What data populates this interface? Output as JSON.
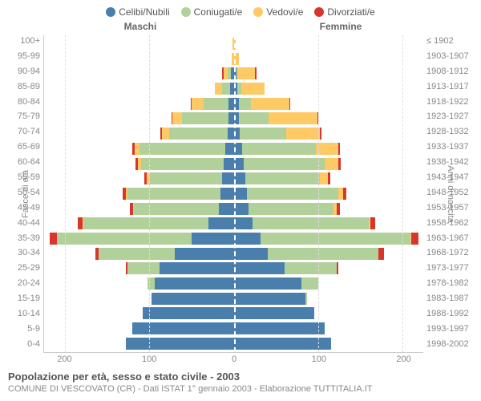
{
  "type": "population-pyramid",
  "legend": [
    {
      "label": "Celibi/Nubili",
      "color": "#4a7ead"
    },
    {
      "label": "Coniugati/e",
      "color": "#b1d09a"
    },
    {
      "label": "Vedovi/e",
      "color": "#ffc965"
    },
    {
      "label": "Divorziati/e",
      "color": "#d7362e"
    }
  ],
  "gender_left": "Maschi",
  "gender_right": "Femmine",
  "ylabel_left": "Fasce di età",
  "ylabel_right": "Anni di nascita",
  "xticks": [
    200,
    100,
    0,
    100,
    200
  ],
  "xmax": 225,
  "bar_gap_pct": 8,
  "colors": {
    "celibi": "#4a7ead",
    "coniugati": "#b1d09a",
    "vedovi": "#ffc965",
    "divorziati": "#d7362e",
    "grid": "#dddddd",
    "axis": "#cccccc",
    "text": "#888888",
    "background": "#ffffff"
  },
  "fonts": {
    "base": 11,
    "legend": 12,
    "title": 13
  },
  "rows": [
    {
      "age": "100+",
      "birth": "≤ 1902",
      "m": {
        "c": 0,
        "co": 0,
        "v": 1,
        "d": 0
      },
      "f": {
        "c": 0,
        "co": 0,
        "v": 2,
        "d": 0
      }
    },
    {
      "age": "95-99",
      "birth": "1903-1907",
      "m": {
        "c": 0,
        "co": 0,
        "v": 2,
        "d": 0
      },
      "f": {
        "c": 0,
        "co": 0,
        "v": 6,
        "d": 0
      }
    },
    {
      "age": "90-94",
      "birth": "1908-1912",
      "m": {
        "c": 3,
        "co": 4,
        "v": 5,
        "d": 2
      },
      "f": {
        "c": 3,
        "co": 2,
        "v": 20,
        "d": 2
      }
    },
    {
      "age": "85-89",
      "birth": "1913-1917",
      "m": {
        "c": 4,
        "co": 10,
        "v": 8,
        "d": 0
      },
      "f": {
        "c": 4,
        "co": 5,
        "v": 28,
        "d": 0
      }
    },
    {
      "age": "80-84",
      "birth": "1918-1922",
      "m": {
        "c": 6,
        "co": 30,
        "v": 14,
        "d": 1
      },
      "f": {
        "c": 6,
        "co": 14,
        "v": 46,
        "d": 1
      }
    },
    {
      "age": "75-79",
      "birth": "1923-1927",
      "m": {
        "c": 6,
        "co": 55,
        "v": 12,
        "d": 1
      },
      "f": {
        "c": 6,
        "co": 35,
        "v": 58,
        "d": 1
      }
    },
    {
      "age": "70-74",
      "birth": "1928-1932",
      "m": {
        "c": 7,
        "co": 70,
        "v": 8,
        "d": 2
      },
      "f": {
        "c": 7,
        "co": 55,
        "v": 40,
        "d": 2
      }
    },
    {
      "age": "65-69",
      "birth": "1933-1937",
      "m": {
        "c": 10,
        "co": 102,
        "v": 6,
        "d": 2
      },
      "f": {
        "c": 10,
        "co": 88,
        "v": 26,
        "d": 2
      }
    },
    {
      "age": "60-64",
      "birth": "1938-1942",
      "m": {
        "c": 12,
        "co": 98,
        "v": 4,
        "d": 3
      },
      "f": {
        "c": 12,
        "co": 96,
        "v": 16,
        "d": 3
      }
    },
    {
      "age": "55-59",
      "birth": "1943-1947",
      "m": {
        "c": 14,
        "co": 86,
        "v": 3,
        "d": 3
      },
      "f": {
        "c": 14,
        "co": 88,
        "v": 10,
        "d": 3
      }
    },
    {
      "age": "50-54",
      "birth": "1948-1952",
      "m": {
        "c": 16,
        "co": 110,
        "v": 2,
        "d": 4
      },
      "f": {
        "c": 16,
        "co": 108,
        "v": 6,
        "d": 4
      }
    },
    {
      "age": "45-49",
      "birth": "1953-1957",
      "m": {
        "c": 18,
        "co": 100,
        "v": 1,
        "d": 4
      },
      "f": {
        "c": 18,
        "co": 100,
        "v": 4,
        "d": 4
      }
    },
    {
      "age": "40-44",
      "birth": "1958-1962",
      "m": {
        "c": 30,
        "co": 148,
        "v": 1,
        "d": 6
      },
      "f": {
        "c": 22,
        "co": 138,
        "v": 2,
        "d": 6
      }
    },
    {
      "age": "35-39",
      "birth": "1963-1967",
      "m": {
        "c": 50,
        "co": 160,
        "v": 0,
        "d": 8
      },
      "f": {
        "c": 32,
        "co": 178,
        "v": 1,
        "d": 8
      }
    },
    {
      "age": "30-34",
      "birth": "1968-1972",
      "m": {
        "c": 70,
        "co": 90,
        "v": 0,
        "d": 4
      },
      "f": {
        "c": 40,
        "co": 132,
        "v": 0,
        "d": 6
      }
    },
    {
      "age": "25-29",
      "birth": "1973-1977",
      "m": {
        "c": 88,
        "co": 38,
        "v": 0,
        "d": 2
      },
      "f": {
        "c": 60,
        "co": 62,
        "v": 0,
        "d": 2
      }
    },
    {
      "age": "20-24",
      "birth": "1978-1982",
      "m": {
        "c": 94,
        "co": 8,
        "v": 0,
        "d": 0
      },
      "f": {
        "c": 80,
        "co": 20,
        "v": 0,
        "d": 0
      }
    },
    {
      "age": "15-19",
      "birth": "1983-1987",
      "m": {
        "c": 98,
        "co": 0,
        "v": 0,
        "d": 0
      },
      "f": {
        "c": 85,
        "co": 2,
        "v": 0,
        "d": 0
      }
    },
    {
      "age": "10-14",
      "birth": "1988-1992",
      "m": {
        "c": 108,
        "co": 0,
        "v": 0,
        "d": 0
      },
      "f": {
        "c": 96,
        "co": 0,
        "v": 0,
        "d": 0
      }
    },
    {
      "age": "5-9",
      "birth": "1993-1997",
      "m": {
        "c": 120,
        "co": 0,
        "v": 0,
        "d": 0
      },
      "f": {
        "c": 108,
        "co": 0,
        "v": 0,
        "d": 0
      }
    },
    {
      "age": "0-4",
      "birth": "1998-2002",
      "m": {
        "c": 128,
        "co": 0,
        "v": 0,
        "d": 0
      },
      "f": {
        "c": 116,
        "co": 0,
        "v": 0,
        "d": 0
      }
    }
  ],
  "title": "Popolazione per età, sesso e stato civile - 2003",
  "subtitle": "COMUNE DI VESCOVATO (CR) - Dati ISTAT 1° gennaio 2003 - Elaborazione TUTTITALIA.IT"
}
